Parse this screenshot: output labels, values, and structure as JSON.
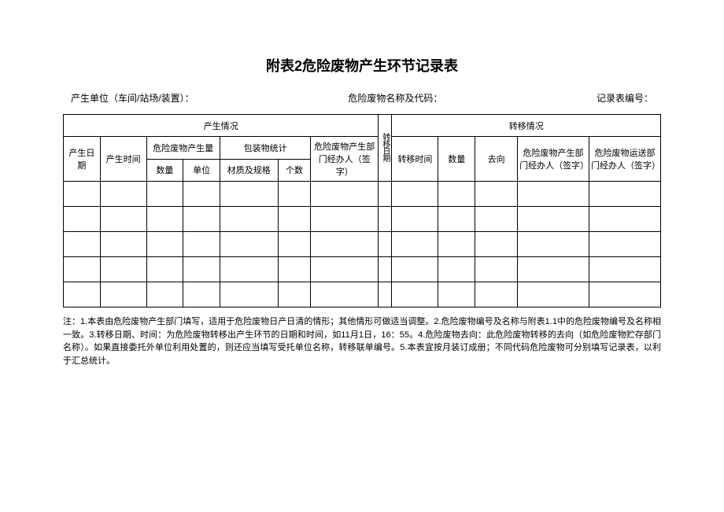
{
  "title": "附表2危险废物产生环节记录表",
  "info": {
    "unit_label": "产生单位（车间/站场/装置）：",
    "waste_label": "危险废物名称及代码：",
    "record_label": "记录表编号："
  },
  "headers": {
    "section_produce": "产生情况",
    "section_transfer": "转移情况",
    "produce_date": "产生日期",
    "produce_time": "产生时间",
    "produce_amount": "危险废物产生量",
    "package_stats": "包装物统计",
    "qty": "数量",
    "unit": "单位",
    "spec": "材质及规格",
    "count": "个数",
    "produce_handler": "危险废物产生部门经办人（签字）",
    "transfer_date": "转移日期",
    "transfer_time": "转移时间",
    "transfer_qty": "数量",
    "destination": "去向",
    "transfer_handler": "危险废物产生部门经办人（签字）",
    "transport_handler": "危险废物运送部门经办人（签字）"
  },
  "notes": "注：1.本表由危险废物产生部门填写，适用于危险废物日产日清的情形；其他情形可做适当调整。2.危险废物编号及名称与附表1.1中的危险废物编号及名称相一致。3.转移日期、时间：为危险废物转移出产生环节的日期和时间，如11月1日，16：55。4.危险废物去向：此危险废物转移的去向（如危险废物贮存部门名称）。如果直接委托外单位利用处置的，则还应当填写受托单位名称，转移联单编号。5.本表宜按月装订成册；不同代码危险废物可分别填写记录表，以利于汇总统计。"
}
